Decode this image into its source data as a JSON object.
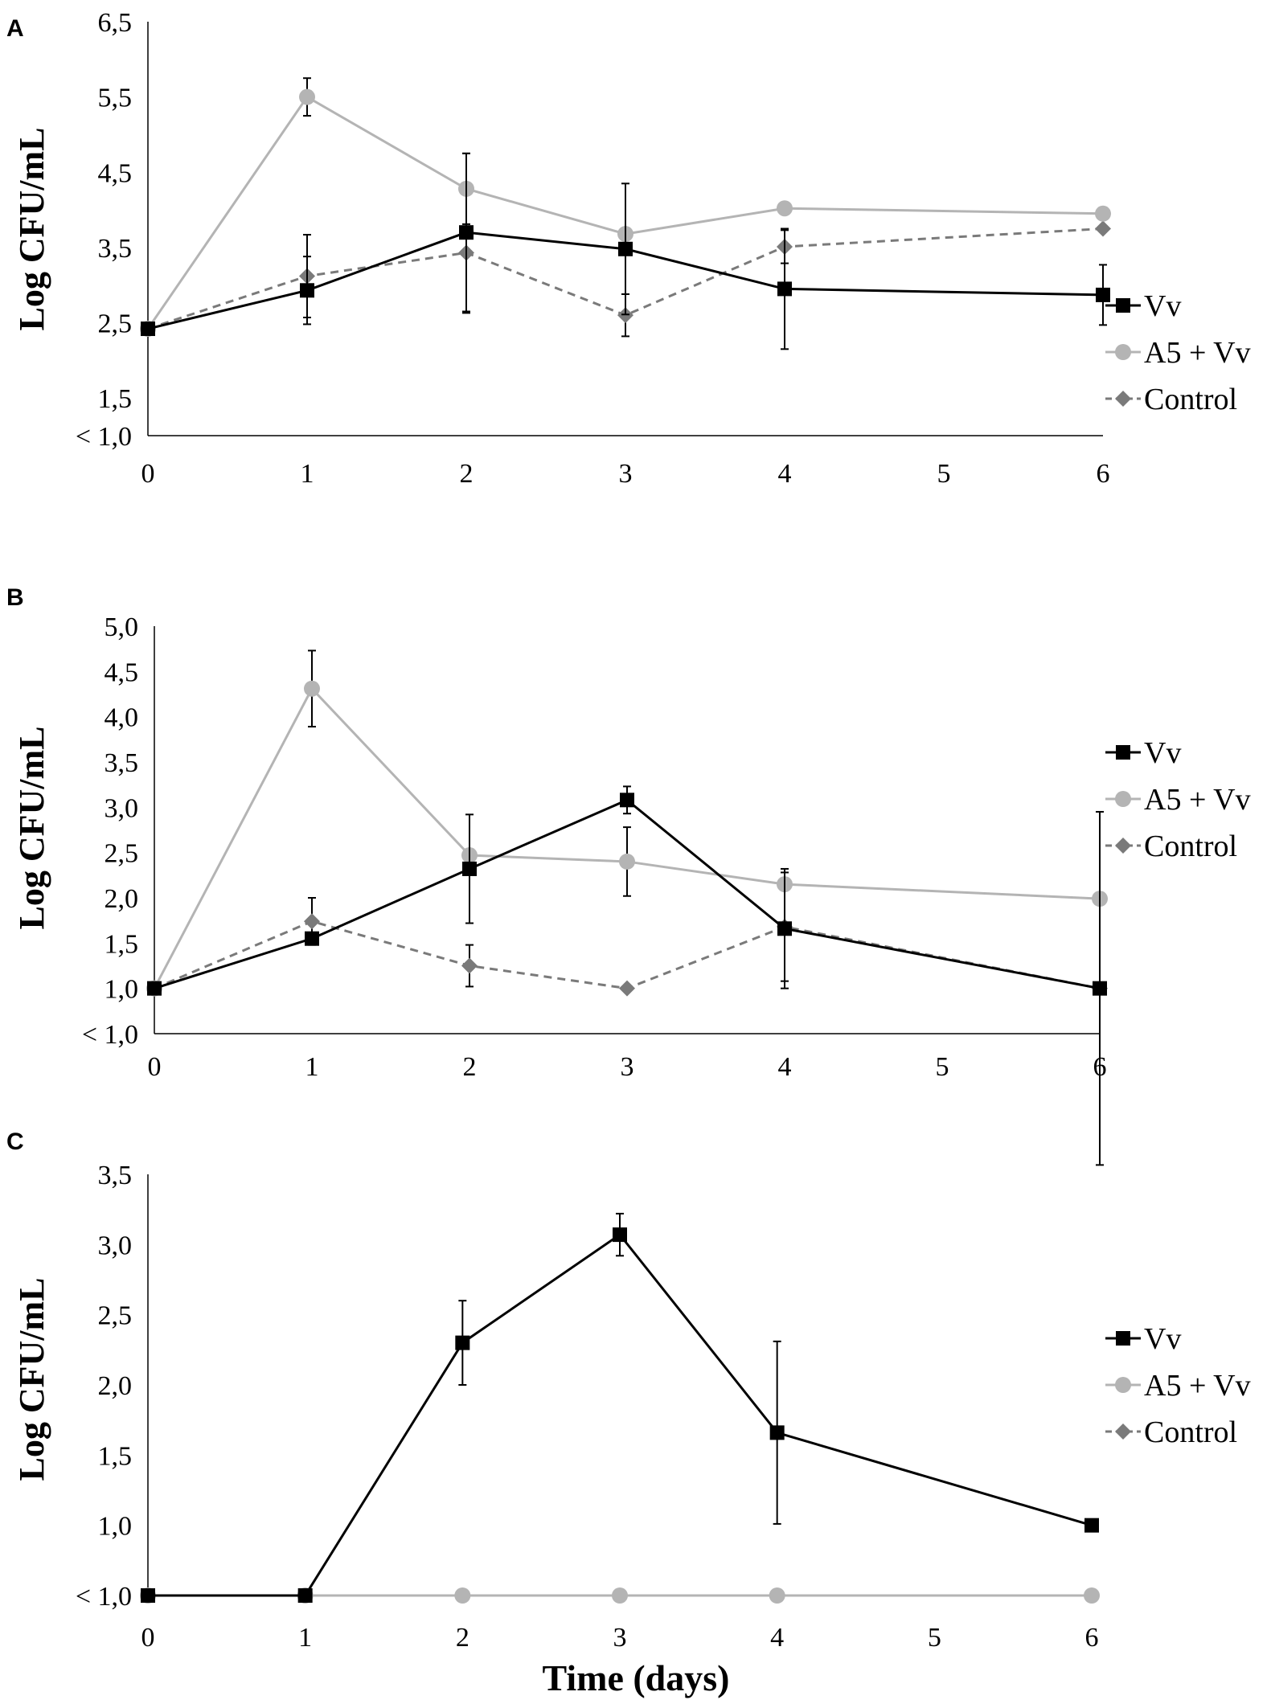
{
  "chart_data": [
    {
      "panel": "A",
      "type": "line",
      "ylabel": "Log CFU/mL",
      "xlabel": "",
      "x_ticks": [
        "0",
        "1",
        "2",
        "3",
        "4",
        "5",
        "6"
      ],
      "xlim": [
        0,
        6
      ],
      "ylim": [
        1.0,
        6.5
      ],
      "y_ticks": [
        {
          "value": 1.0,
          "label": "< 1,0"
        },
        {
          "value": 1.5,
          "label": "1,5"
        },
        {
          "value": 2.5,
          "label": "2,5"
        },
        {
          "value": 3.5,
          "label": "3,5"
        },
        {
          "value": 4.5,
          "label": "4,5"
        },
        {
          "value": 5.5,
          "label": "5,5"
        },
        {
          "value": 6.5,
          "label": "6,5"
        }
      ],
      "series": [
        {
          "name": "Vv",
          "x": [
            0,
            1,
            2,
            3,
            4,
            6
          ],
          "values": [
            2.42,
            2.93,
            3.7,
            3.48,
            2.95,
            2.87
          ],
          "errors": [
            0,
            0.45,
            1.05,
            0.87,
            0.8,
            0.4
          ]
        },
        {
          "name": "A5 + Vv",
          "x": [
            0,
            1,
            2,
            3,
            4,
            6
          ],
          "values": [
            2.42,
            5.5,
            4.28,
            3.68,
            4.02,
            3.95
          ],
          "errors": [
            0,
            0.25,
            0.47,
            0,
            0,
            0
          ]
        },
        {
          "name": "Control",
          "x": [
            0,
            1,
            2,
            3,
            4,
            6
          ],
          "values": [
            2.42,
            3.12,
            3.43,
            2.6,
            3.51,
            3.75
          ],
          "errors": [
            0,
            0.55,
            0.8,
            0.28,
            0.22,
            0
          ]
        }
      ]
    },
    {
      "panel": "B",
      "type": "line",
      "ylabel": "Log CFU/mL",
      "xlabel": "",
      "x_ticks": [
        "0",
        "1",
        "2",
        "3",
        "4",
        "5",
        "6"
      ],
      "xlim": [
        0,
        6
      ],
      "ylim": [
        0.5,
        5.0
      ],
      "y_ticks": [
        {
          "value": 0.5,
          "label": "< 1,0"
        },
        {
          "value": 1.0,
          "label": "1,0"
        },
        {
          "value": 1.5,
          "label": "1,5"
        },
        {
          "value": 2.0,
          "label": "2,0"
        },
        {
          "value": 2.5,
          "label": "2,5"
        },
        {
          "value": 3.0,
          "label": "3,0"
        },
        {
          "value": 3.5,
          "label": "3,5"
        },
        {
          "value": 4.0,
          "label": "4,0"
        },
        {
          "value": 4.5,
          "label": "4,5"
        },
        {
          "value": 5.0,
          "label": "5,0"
        }
      ],
      "series": [
        {
          "name": "Vv",
          "x": [
            0,
            1,
            2,
            3,
            4,
            6
          ],
          "values": [
            1.0,
            1.55,
            2.32,
            3.08,
            1.66,
            1.0
          ],
          "errors": [
            0,
            0,
            0.6,
            0.15,
            0.66,
            1.95
          ]
        },
        {
          "name": "A5 + Vv",
          "x": [
            0,
            1,
            2,
            3,
            4,
            6
          ],
          "values": [
            1.0,
            4.31,
            2.47,
            2.4,
            2.15,
            1.99
          ],
          "errors": [
            0,
            0.42,
            0,
            0.38,
            0,
            0
          ]
        },
        {
          "name": "Control",
          "x": [
            0,
            1,
            2,
            3,
            4,
            6
          ],
          "values": [
            1.0,
            1.74,
            1.25,
            1.0,
            1.68,
            1.0
          ],
          "errors": [
            0,
            0.26,
            0.23,
            0,
            0.6,
            0
          ]
        }
      ]
    },
    {
      "panel": "C",
      "type": "line",
      "ylabel": "Log CFU/mL",
      "xlabel": "Time (days)",
      "x_ticks": [
        "0",
        "1",
        "2",
        "3",
        "4",
        "5",
        "6"
      ],
      "xlim": [
        0,
        6
      ],
      "ylim": [
        0.5,
        3.5
      ],
      "y_ticks": [
        {
          "value": 0.5,
          "label": "< 1,0"
        },
        {
          "value": 1.0,
          "label": "1,0"
        },
        {
          "value": 1.5,
          "label": "1,5"
        },
        {
          "value": 2.0,
          "label": "2,0"
        },
        {
          "value": 2.5,
          "label": "2,5"
        },
        {
          "value": 3.0,
          "label": "3,0"
        },
        {
          "value": 3.5,
          "label": "3,5"
        }
      ],
      "series": [
        {
          "name": "Vv",
          "x": [
            0,
            1,
            2,
            3,
            4,
            6
          ],
          "values": [
            0.5,
            0.5,
            2.3,
            3.07,
            1.66,
            1.0
          ],
          "errors": [
            0,
            0,
            0.3,
            0.15,
            0.65,
            0
          ]
        },
        {
          "name": "A5 + Vv",
          "x": [
            0,
            1,
            2,
            3,
            4,
            6
          ],
          "values": [
            0.5,
            0.5,
            0.5,
            0.5,
            0.5,
            0.5
          ],
          "errors": [
            0,
            0,
            0,
            0,
            0,
            0
          ]
        },
        {
          "name": "Control",
          "x": [
            0,
            1,
            2,
            3,
            4,
            6
          ],
          "values": [
            0.5,
            0.5,
            0.5,
            0.5,
            0.5,
            0.5
          ],
          "errors": [
            0,
            0,
            0,
            0,
            0,
            0
          ]
        }
      ]
    }
  ],
  "colors": {
    "Vv": "#000000",
    "A5 + Vv": "#b4b4b4",
    "Control": "#7a7a7a",
    "axis": "#000000"
  }
}
